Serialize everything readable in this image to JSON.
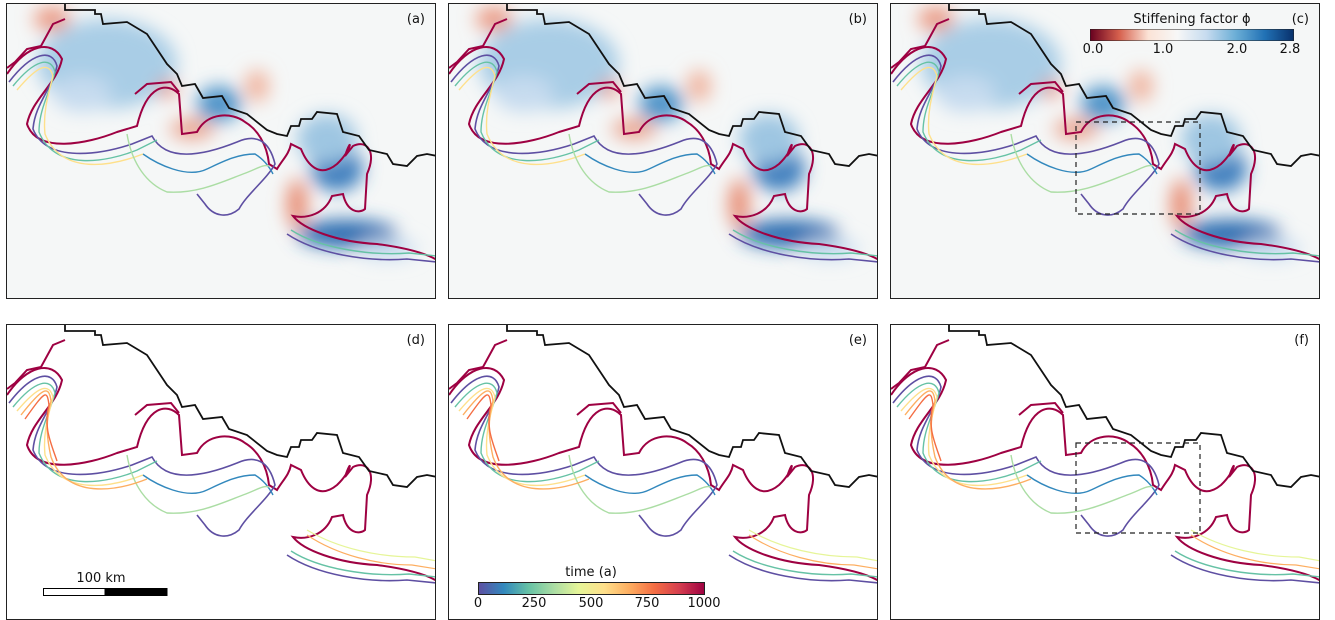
{
  "panels": [
    {
      "label": "(a)"
    },
    {
      "label": "(b)"
    },
    {
      "label": "(c)"
    },
    {
      "label": "(d)"
    },
    {
      "label": "(e)"
    },
    {
      "label": "(f)"
    }
  ],
  "stiffening_colorbar": {
    "title": "Stiffening factor ϕ",
    "ticks": [
      "0.0",
      "1.0",
      "2.0",
      "2.8"
    ],
    "colors": [
      "#67001f",
      "#d6604d",
      "#fbe3d6",
      "#f7f7f7",
      "#c6dbef",
      "#6baed6",
      "#2171b5",
      "#08306b"
    ]
  },
  "time_colorbar": {
    "title": "time (a)",
    "ticks": [
      "0",
      "250",
      "500",
      "750",
      "1000"
    ],
    "colors": [
      "#5e4fa2",
      "#3288bd",
      "#66c2a5",
      "#abdda4",
      "#e6f598",
      "#fee08b",
      "#fdae61",
      "#f46d43",
      "#d53e4f",
      "#9e0142"
    ]
  },
  "scale_bar": {
    "label": "100 km"
  }
}
